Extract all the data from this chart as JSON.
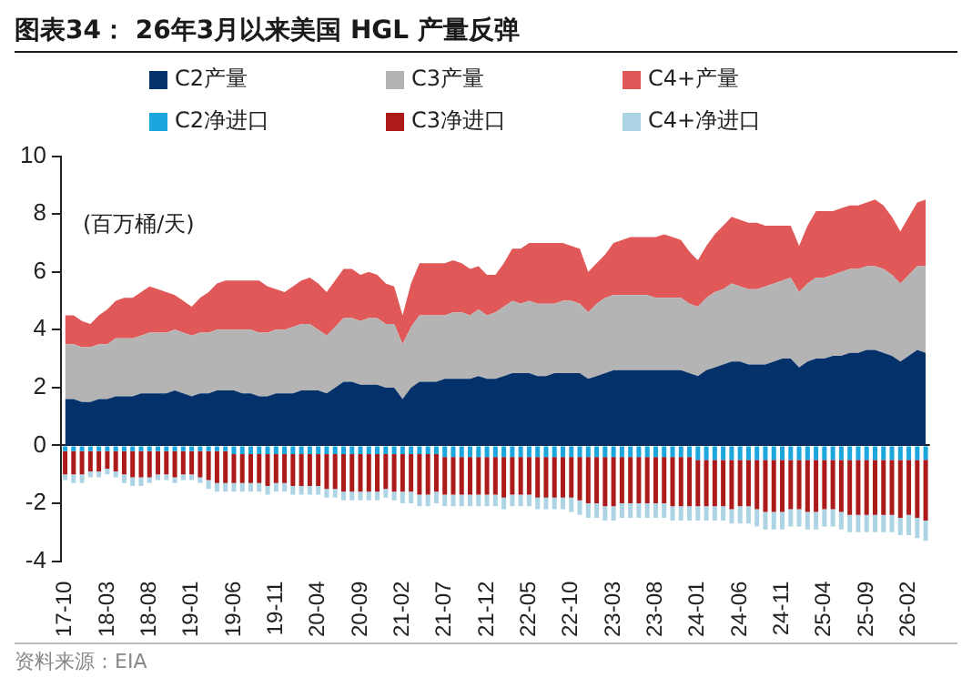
{
  "chart_data": {
    "type": "area",
    "title": "图表34： 26年3月以来美国 HGL 产量反弹",
    "annotations": [
      "(百万桶/天)",
      "资料来源：EIA"
    ],
    "categories": [
      "17-10",
      null,
      null,
      null,
      null,
      "18-03",
      null,
      null,
      null,
      null,
      "18-08",
      null,
      null,
      null,
      null,
      "19-01",
      null,
      null,
      null,
      null,
      "19-06",
      null,
      null,
      null,
      null,
      "19-11",
      null,
      null,
      null,
      null,
      "20-04",
      null,
      null,
      null,
      null,
      "20-09",
      null,
      null,
      null,
      null,
      "21-02",
      null,
      null,
      null,
      null,
      "21-07",
      null,
      null,
      null,
      null,
      "21-12",
      null,
      null,
      null,
      null,
      "22-05",
      null,
      null,
      null,
      null,
      "22-10",
      null,
      null,
      null,
      null,
      "23-03",
      null,
      null,
      null,
      null,
      "23-08",
      null,
      null,
      null,
      null,
      "24-01",
      null,
      null,
      null,
      null,
      "24-06",
      null,
      null,
      null,
      null,
      "24-11",
      null,
      null,
      null,
      null,
      "25-04",
      null,
      null,
      null,
      null,
      "25-09",
      null,
      null,
      null,
      null,
      "26-02",
      null,
      null
    ],
    "series": [
      {
        "name": "C2产量",
        "color": "#05316a",
        "values": [
          1.6,
          1.6,
          1.5,
          1.5,
          1.6,
          1.6,
          1.7,
          1.7,
          1.7,
          1.8,
          1.8,
          1.8,
          1.8,
          1.9,
          1.8,
          1.7,
          1.8,
          1.8,
          1.9,
          1.9,
          1.9,
          1.8,
          1.8,
          1.7,
          1.7,
          1.8,
          1.8,
          1.8,
          1.9,
          1.9,
          1.9,
          1.8,
          2.0,
          2.2,
          2.2,
          2.1,
          2.1,
          2.1,
          2.0,
          2.0,
          1.6,
          2.0,
          2.2,
          2.2,
          2.2,
          2.3,
          2.3,
          2.3,
          2.3,
          2.4,
          2.3,
          2.3,
          2.4,
          2.5,
          2.5,
          2.5,
          2.4,
          2.4,
          2.5,
          2.5,
          2.5,
          2.5,
          2.3,
          2.4,
          2.5,
          2.6,
          2.6,
          2.6,
          2.6,
          2.6,
          2.6,
          2.6,
          2.6,
          2.6,
          2.5,
          2.4,
          2.6,
          2.7,
          2.8,
          2.9,
          2.9,
          2.8,
          2.8,
          2.8,
          2.9,
          3.0,
          3.0,
          2.7,
          2.9,
          3.0,
          3.0,
          3.1,
          3.1,
          3.2,
          3.2,
          3.3,
          3.3,
          3.2,
          3.1,
          2.9,
          3.1,
          3.3,
          3.2
        ]
      },
      {
        "name": "C3产量",
        "color": "#b4b4b4",
        "values": [
          1.9,
          1.9,
          1.9,
          1.9,
          1.9,
          1.9,
          2.0,
          2.0,
          2.0,
          2.0,
          2.1,
          2.1,
          2.1,
          2.1,
          2.1,
          2.1,
          2.1,
          2.1,
          2.1,
          2.1,
          2.1,
          2.2,
          2.2,
          2.2,
          2.2,
          2.2,
          2.2,
          2.3,
          2.3,
          2.3,
          2.1,
          2.0,
          2.1,
          2.2,
          2.2,
          2.2,
          2.3,
          2.3,
          2.2,
          2.2,
          1.9,
          2.1,
          2.3,
          2.3,
          2.3,
          2.2,
          2.3,
          2.3,
          2.2,
          2.3,
          2.2,
          2.3,
          2.4,
          2.5,
          2.4,
          2.5,
          2.5,
          2.5,
          2.4,
          2.5,
          2.5,
          2.4,
          2.3,
          2.5,
          2.6,
          2.6,
          2.6,
          2.6,
          2.6,
          2.6,
          2.5,
          2.5,
          2.5,
          2.5,
          2.4,
          2.4,
          2.5,
          2.6,
          2.6,
          2.7,
          2.6,
          2.6,
          2.6,
          2.7,
          2.7,
          2.7,
          2.8,
          2.6,
          2.7,
          2.8,
          2.8,
          2.8,
          2.9,
          2.9,
          2.9,
          2.9,
          2.9,
          2.9,
          2.8,
          2.7,
          2.8,
          2.9,
          3.0
        ]
      },
      {
        "name": "C4+产量",
        "color": "#e05858",
        "values": [
          1.0,
          1.0,
          0.9,
          0.8,
          1.0,
          1.2,
          1.3,
          1.4,
          1.4,
          1.5,
          1.6,
          1.5,
          1.4,
          1.2,
          1.1,
          1.0,
          1.2,
          1.4,
          1.6,
          1.7,
          1.7,
          1.7,
          1.7,
          1.8,
          1.6,
          1.4,
          1.3,
          1.4,
          1.5,
          1.6,
          1.6,
          1.5,
          1.6,
          1.7,
          1.7,
          1.6,
          1.6,
          1.5,
          1.4,
          1.3,
          1.0,
          1.5,
          1.8,
          1.8,
          1.8,
          1.8,
          1.8,
          1.7,
          1.6,
          1.5,
          1.4,
          1.3,
          1.5,
          1.8,
          1.9,
          2.0,
          2.1,
          2.1,
          2.1,
          2.0,
          1.9,
          1.9,
          1.4,
          1.4,
          1.5,
          1.8,
          1.9,
          2.0,
          2.0,
          2.0,
          2.1,
          2.2,
          2.1,
          2.0,
          1.8,
          1.6,
          1.8,
          2.0,
          2.2,
          2.3,
          2.3,
          2.3,
          2.3,
          2.1,
          2.0,
          1.9,
          1.8,
          1.6,
          2.0,
          2.3,
          2.3,
          2.2,
          2.2,
          2.2,
          2.2,
          2.2,
          2.3,
          2.2,
          2.0,
          1.8,
          2.0,
          2.2,
          2.3
        ]
      },
      {
        "name": "C2净进口",
        "type": "bar",
        "color": "#1ba6de",
        "values": [
          -0.2,
          -0.2,
          -0.2,
          -0.2,
          -0.2,
          -0.2,
          -0.2,
          -0.2,
          -0.2,
          -0.2,
          -0.2,
          -0.2,
          -0.2,
          -0.2,
          -0.2,
          -0.2,
          -0.2,
          -0.2,
          -0.2,
          -0.2,
          -0.3,
          -0.3,
          -0.3,
          -0.3,
          -0.3,
          -0.3,
          -0.3,
          -0.3,
          -0.3,
          -0.3,
          -0.3,
          -0.3,
          -0.3,
          -0.3,
          -0.3,
          -0.3,
          -0.3,
          -0.3,
          -0.3,
          -0.3,
          -0.3,
          -0.3,
          -0.3,
          -0.3,
          -0.3,
          -0.4,
          -0.4,
          -0.4,
          -0.4,
          -0.4,
          -0.4,
          -0.4,
          -0.4,
          -0.4,
          -0.4,
          -0.4,
          -0.4,
          -0.4,
          -0.4,
          -0.4,
          -0.4,
          -0.4,
          -0.4,
          -0.4,
          -0.4,
          -0.4,
          -0.4,
          -0.4,
          -0.4,
          -0.4,
          -0.4,
          -0.4,
          -0.4,
          -0.4,
          -0.4,
          -0.5,
          -0.5,
          -0.5,
          -0.5,
          -0.5,
          -0.5,
          -0.5,
          -0.5,
          -0.5,
          -0.5,
          -0.5,
          -0.5,
          -0.5,
          -0.5,
          -0.5,
          -0.5,
          -0.5,
          -0.5,
          -0.5,
          -0.5,
          -0.5,
          -0.5,
          -0.5,
          -0.5,
          -0.5,
          -0.5,
          -0.5,
          -0.5
        ]
      },
      {
        "name": "C3净进口",
        "type": "bar",
        "color": "#ad1a1a",
        "values": [
          -0.8,
          -0.8,
          -0.8,
          -0.7,
          -0.7,
          -0.6,
          -0.7,
          -0.8,
          -0.9,
          -0.9,
          -0.9,
          -0.8,
          -0.8,
          -0.9,
          -0.8,
          -0.8,
          -0.9,
          -1.0,
          -1.1,
          -1.1,
          -1.0,
          -1.0,
          -1.0,
          -1.0,
          -1.1,
          -1.0,
          -1.0,
          -1.1,
          -1.1,
          -1.1,
          -1.1,
          -1.2,
          -1.2,
          -1.3,
          -1.3,
          -1.3,
          -1.3,
          -1.3,
          -1.2,
          -1.3,
          -1.3,
          -1.3,
          -1.4,
          -1.4,
          -1.3,
          -1.3,
          -1.3,
          -1.3,
          -1.3,
          -1.3,
          -1.3,
          -1.3,
          -1.4,
          -1.3,
          -1.3,
          -1.3,
          -1.4,
          -1.4,
          -1.4,
          -1.4,
          -1.4,
          -1.5,
          -1.6,
          -1.6,
          -1.7,
          -1.7,
          -1.6,
          -1.6,
          -1.6,
          -1.6,
          -1.6,
          -1.6,
          -1.7,
          -1.7,
          -1.7,
          -1.6,
          -1.6,
          -1.6,
          -1.6,
          -1.7,
          -1.6,
          -1.6,
          -1.7,
          -1.8,
          -1.8,
          -1.8,
          -1.7,
          -1.7,
          -1.8,
          -1.8,
          -1.7,
          -1.7,
          -1.8,
          -1.9,
          -1.9,
          -1.9,
          -1.9,
          -1.9,
          -1.9,
          -2.0,
          -1.9,
          -2.0,
          -2.1
        ]
      },
      {
        "name": "C4+净进口",
        "type": "bar",
        "color": "#acd4e4",
        "values": [
          -0.2,
          -0.3,
          -0.3,
          -0.2,
          -0.2,
          -0.2,
          -0.2,
          -0.3,
          -0.3,
          -0.3,
          -0.2,
          -0.2,
          -0.2,
          -0.2,
          -0.2,
          -0.2,
          -0.2,
          -0.3,
          -0.3,
          -0.3,
          -0.3,
          -0.3,
          -0.3,
          -0.3,
          -0.3,
          -0.3,
          -0.3,
          -0.3,
          -0.3,
          -0.3,
          -0.3,
          -0.3,
          -0.3,
          -0.3,
          -0.3,
          -0.3,
          -0.3,
          -0.3,
          -0.3,
          -0.3,
          -0.4,
          -0.4,
          -0.4,
          -0.4,
          -0.4,
          -0.4,
          -0.4,
          -0.4,
          -0.4,
          -0.4,
          -0.4,
          -0.4,
          -0.4,
          -0.4,
          -0.4,
          -0.4,
          -0.4,
          -0.4,
          -0.4,
          -0.4,
          -0.5,
          -0.5,
          -0.5,
          -0.5,
          -0.5,
          -0.5,
          -0.5,
          -0.5,
          -0.5,
          -0.5,
          -0.5,
          -0.5,
          -0.5,
          -0.5,
          -0.5,
          -0.5,
          -0.5,
          -0.5,
          -0.5,
          -0.5,
          -0.6,
          -0.6,
          -0.6,
          -0.6,
          -0.6,
          -0.6,
          -0.6,
          -0.6,
          -0.6,
          -0.6,
          -0.6,
          -0.6,
          -0.6,
          -0.6,
          -0.6,
          -0.6,
          -0.6,
          -0.6,
          -0.6,
          -0.6,
          -0.7,
          -0.7,
          -0.7
        ]
      }
    ],
    "stacked": true,
    "ylim": [
      -4,
      10
    ],
    "yticks": [
      -4,
      -2,
      0,
      2,
      4,
      6,
      8,
      10
    ],
    "legend": "top"
  }
}
